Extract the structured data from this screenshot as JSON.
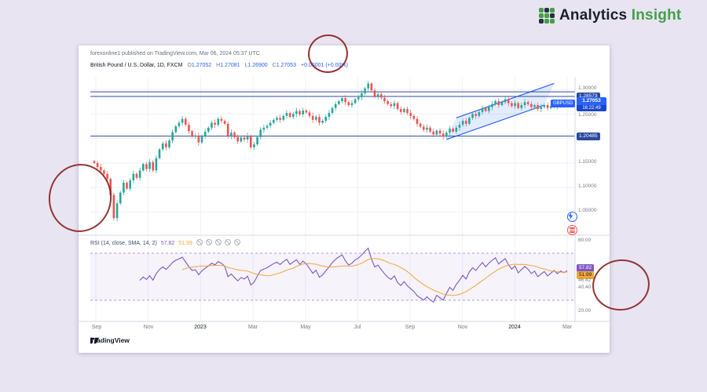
{
  "page": {
    "background": "#e8e4f2"
  },
  "brand": {
    "first": "Analytics",
    "second": "Insight",
    "primary_color": "#182026",
    "secondary_color": "#43a047"
  },
  "header": {
    "published": "forexonline1 published on TradingView.com, Mar 06, 2024 05:37 UTC",
    "symbol": "British Pound / U.S. Dollar, 1D, FXCM",
    "o_label": "O",
    "o": "1.27052",
    "h_label": "H",
    "h": "1.27081",
    "l_label": "L",
    "l": "1.26900",
    "c_label": "C",
    "c": "1.27053",
    "change": "+0.00001 (+0.00%)"
  },
  "price_axis": {
    "t130": "1.30000",
    "res": "1.28573",
    "sym": "GBPUSD",
    "last": "1.27053",
    "countdown": "16:22:49",
    "t125": "1.25000",
    "sup": "1.20485",
    "t115": "1.15000",
    "t110": "1.10000",
    "t105": "1.05000"
  },
  "rsi_header": {
    "title": "RSI (14, close, SMA, 14, 2)",
    "value": "57.82",
    "ma": "51.99"
  },
  "rsi_axis": {
    "t80": "80.00",
    "rsi": "57.82",
    "ma": "51.99",
    "l1": "46.42",
    "l2": "40.40",
    "t20": "20.00"
  },
  "time_axis": {
    "labels": [
      "Sep",
      "Nov",
      "2023",
      "Mar",
      "May",
      "Jul",
      "Sep",
      "Nov",
      "2024",
      "Mar"
    ]
  },
  "footer": {
    "brand": "TradingView"
  },
  "chart_data": {
    "type": "candlestick",
    "title": "British Pound / U.S. Dollar, 1D, FXCM",
    "symbol": "GBPUSD",
    "interval": "1D",
    "exchange": "FXCM",
    "x_range": "Sep 2022 - Mar 2024",
    "x_tick_labels": [
      "Sep",
      "Nov",
      "2023",
      "Mar",
      "May",
      "Jul",
      "Sep",
      "Nov",
      "2024",
      "Mar"
    ],
    "price_axis_ticks": [
      1.3,
      1.25,
      1.2,
      1.15,
      1.1,
      1.05
    ],
    "ylim": [
      1.01,
      1.325
    ],
    "closes": [
      1.15,
      1.142,
      1.135,
      1.128,
      1.118,
      1.085,
      1.038,
      1.068,
      1.09,
      1.11,
      1.098,
      1.115,
      1.128,
      1.12,
      1.135,
      1.148,
      1.138,
      1.152,
      1.135,
      1.16,
      1.178,
      1.19,
      1.182,
      1.196,
      1.213,
      1.225,
      1.232,
      1.24,
      1.228,
      1.215,
      1.204,
      1.206,
      1.192,
      1.205,
      1.214,
      1.222,
      1.232,
      1.228,
      1.24,
      1.236,
      1.23,
      1.205,
      1.212,
      1.203,
      1.194,
      1.202,
      1.198,
      1.205,
      1.182,
      1.188,
      1.203,
      1.218,
      1.222,
      1.226,
      1.232,
      1.238,
      1.242,
      1.238,
      1.246,
      1.252,
      1.244,
      1.25,
      1.256,
      1.249,
      1.257,
      1.253,
      1.246,
      1.238,
      1.244,
      1.232,
      1.236,
      1.244,
      1.252,
      1.262,
      1.27,
      1.276,
      1.282,
      1.274,
      1.268,
      1.272,
      1.28,
      1.284,
      1.292,
      1.302,
      1.312,
      1.298,
      1.286,
      1.29,
      1.283,
      1.276,
      1.27,
      1.266,
      1.272,
      1.26,
      1.254,
      1.26,
      1.252,
      1.246,
      1.24,
      1.23,
      1.224,
      1.218,
      1.222,
      1.214,
      1.208,
      1.216,
      1.21,
      1.204,
      1.212,
      1.22,
      1.214,
      1.222,
      1.228,
      1.236,
      1.23,
      1.242,
      1.25,
      1.246,
      1.254,
      1.262,
      1.256,
      1.264,
      1.27,
      1.276,
      1.268,
      1.274,
      1.28,
      1.272,
      1.266,
      1.272,
      1.262,
      1.268,
      1.274,
      1.27,
      1.264,
      1.268,
      1.26,
      1.264,
      1.268,
      1.262,
      1.266,
      1.27,
      1.266,
      1.27,
      1.268,
      1.27053
    ],
    "last_candle": {
      "open": 1.27052,
      "high": 1.27081,
      "low": 1.269,
      "close": 1.27053,
      "change": "+0.00001",
      "change_pct": "+0.00%"
    },
    "levels": [
      {
        "price": 1.295,
        "label": ""
      },
      {
        "price": 1.28573,
        "label": "1.28573"
      },
      {
        "price": 1.20485,
        "label": "1.20485"
      }
    ],
    "channel": {
      "lower": [
        [
          108,
          1.198
        ],
        [
          138,
          1.268
        ]
      ],
      "upper": [
        [
          111,
          1.242
        ],
        [
          141,
          1.312
        ]
      ]
    },
    "rsi": {
      "name": "RSI (14, close, SMA, 14, 2)",
      "period": 14,
      "ma_period": 14,
      "current": 57.82,
      "ma_current": 51.99,
      "ylim": [
        20,
        80
      ],
      "band": [
        30,
        70
      ],
      "axis_labels": [
        80.0,
        46.42,
        40.4,
        20.0
      ]
    },
    "annotations": [
      {
        "type": "ellipse",
        "color": "#8b1e1e",
        "target": "area above chart header"
      },
      {
        "type": "ellipse",
        "color": "#8b1e1e",
        "target": "Sep 2022 crash low region"
      },
      {
        "type": "ellipse",
        "color": "#8b1e1e",
        "target": "RSI value labels on right axis"
      }
    ],
    "colors": {
      "up": "#26a69a",
      "down": "#ef5350",
      "level": "#2a4a9f",
      "channel": "#2962ff",
      "rsi": "#7e57c2",
      "rsi_ma": "#f0a73a"
    }
  }
}
